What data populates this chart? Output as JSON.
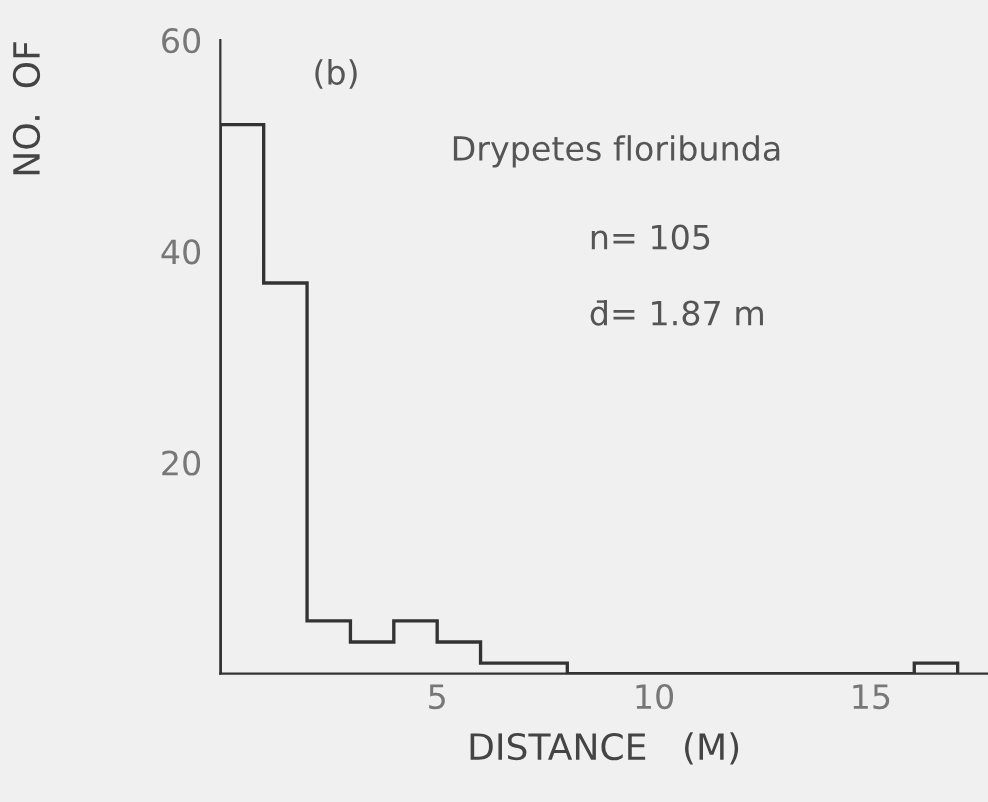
{
  "chart_data": {
    "type": "histogram",
    "xlabel": "DISTANCE   (M)",
    "ylabel": "NO.  OF",
    "bins": [
      0,
      1,
      2,
      3,
      4,
      5,
      6,
      7,
      8,
      9,
      10,
      11,
      12,
      13,
      14,
      15,
      16,
      17
    ],
    "values": [
      52,
      37,
      5,
      3,
      5,
      3,
      1,
      1,
      0,
      0,
      0,
      0,
      0,
      0,
      0,
      0,
      1
    ],
    "color": "#333333",
    "xlim": [
      0,
      17.7
    ],
    "ylim": [
      0,
      60
    ],
    "xticks": [
      5,
      10,
      15
    ],
    "yticks": [
      20,
      40,
      60
    ],
    "grid": false,
    "annotations": [
      "(b)",
      "Drypetes floribunda",
      "n= 105",
      "d̄= 1.87 m"
    ]
  }
}
